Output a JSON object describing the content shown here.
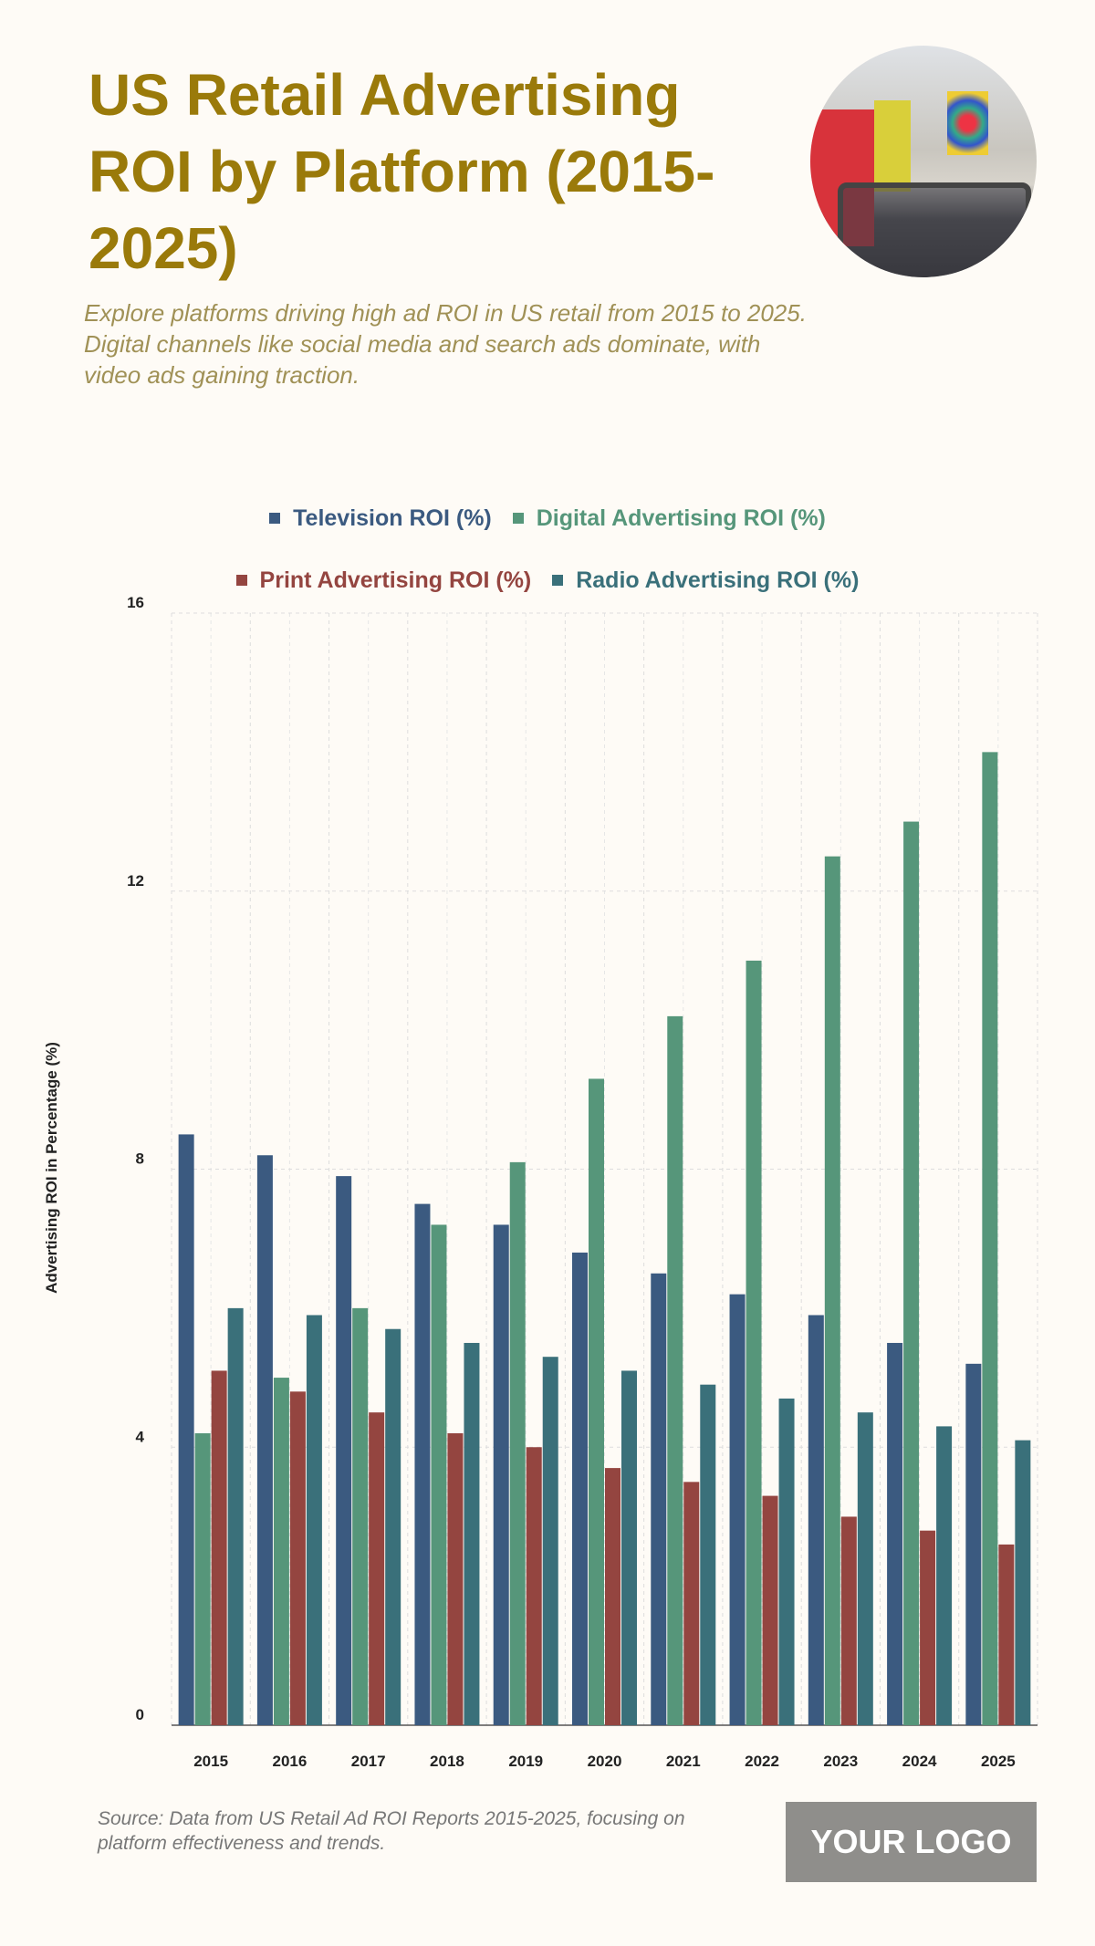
{
  "header": {
    "title": "US Retail Advertising ROI by Platform (2015-2025)",
    "subtitle": "Explore platforms driving high ad ROI in US retail from 2015 to 2025. Digital channels like social media and search ads dominate, with video ads gaining traction."
  },
  "footer": {
    "source": "Source: Data from US Retail Ad ROI Reports 2015-2025, focusing on platform effectiveness and trends.",
    "logo": "YOUR LOGO"
  },
  "chart_data": {
    "type": "bar",
    "title": "",
    "xlabel": "",
    "ylabel": "Advertising ROI in Percentage (%)",
    "ylim": [
      0,
      16
    ],
    "yticks": [
      0,
      4,
      8,
      12,
      16
    ],
    "grid": true,
    "legend_position": "top",
    "categories": [
      "2015",
      "2016",
      "2017",
      "2018",
      "2019",
      "2020",
      "2021",
      "2022",
      "2023",
      "2024",
      "2025"
    ],
    "series": [
      {
        "name": "Television ROI (%)",
        "color": "#3b5a80",
        "values": [
          8.5,
          8.2,
          7.9,
          7.5,
          7.2,
          6.8,
          6.5,
          6.2,
          5.9,
          5.5,
          5.2
        ]
      },
      {
        "name": "Digital Advertising ROI (%)",
        "color": "#56967a",
        "values": [
          4.2,
          5.0,
          6.0,
          7.2,
          8.1,
          9.3,
          10.2,
          11.0,
          12.5,
          13.0,
          14.0
        ]
      },
      {
        "name": "Print Advertising ROI (%)",
        "color": "#944540",
        "values": [
          5.1,
          4.8,
          4.5,
          4.2,
          4.0,
          3.7,
          3.5,
          3.3,
          3.0,
          2.8,
          2.6
        ]
      },
      {
        "name": "Radio Advertising ROI (%)",
        "color": "#3a707a",
        "values": [
          6.0,
          5.9,
          5.7,
          5.5,
          5.3,
          5.1,
          4.9,
          4.7,
          4.5,
          4.3,
          4.1
        ]
      }
    ]
  }
}
